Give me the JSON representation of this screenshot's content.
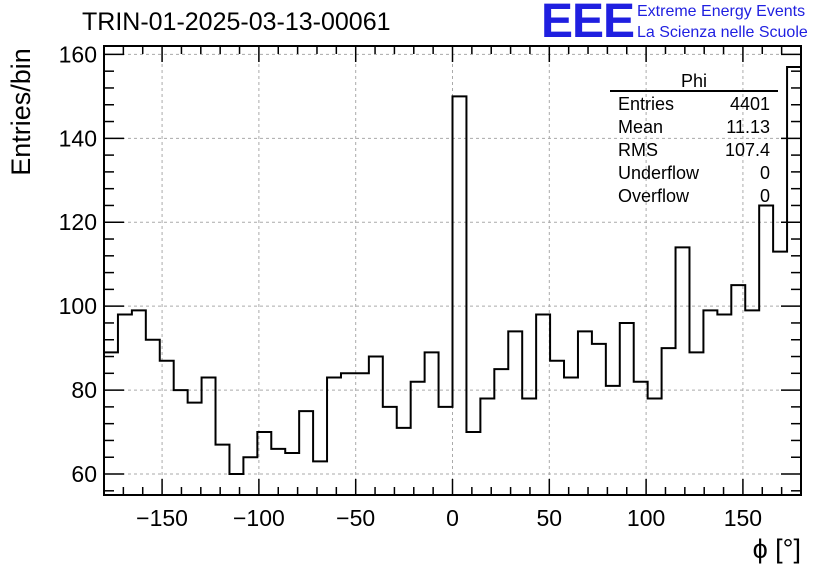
{
  "header": {
    "run_title": "TRIN-01-2025-03-13-00061",
    "logo_letters": "EEE",
    "logo_line1": "Extreme Energy Events",
    "logo_line2": "La Scienza nelle Scuole",
    "logo_color": "#1f1fe0"
  },
  "stats_box": {
    "title": "Phi",
    "rows": [
      {
        "label": "Entries",
        "value": "4401"
      },
      {
        "label": "Mean",
        "value": "11.13"
      },
      {
        "label": "RMS",
        "value": "107.4"
      },
      {
        "label": "Underflow",
        "value": "0"
      },
      {
        "label": "Overflow",
        "value": "0"
      }
    ]
  },
  "chart_data": {
    "type": "histogram",
    "title": "TRIN-01-2025-03-13-00061",
    "xlabel": "ϕ [°]",
    "ylabel": "Entries/bin",
    "xlim": [
      -180,
      180
    ],
    "ylim": [
      55,
      162
    ],
    "grid": true,
    "bin_width": 7.2,
    "x_ticks": [
      -150,
      -100,
      -50,
      0,
      50,
      100,
      150
    ],
    "x_tick_labels": [
      "−150",
      "−100",
      "−50",
      "0",
      "50",
      "100",
      "150"
    ],
    "y_ticks": [
      60,
      80,
      100,
      120,
      140,
      160
    ],
    "y_tick_labels": [
      "60",
      "80",
      "100",
      "120",
      "140",
      "160"
    ],
    "values": [
      89,
      98,
      99,
      92,
      87,
      80,
      77,
      83,
      67,
      60,
      64,
      70,
      66,
      65,
      75,
      63,
      83,
      84,
      84,
      88,
      76,
      71,
      82,
      89,
      76,
      150,
      70,
      78,
      85,
      94,
      78,
      98,
      87,
      83,
      94,
      91,
      81,
      96,
      82,
      78,
      90,
      114,
      89,
      99,
      98,
      105,
      99,
      124,
      113,
      157
    ]
  }
}
